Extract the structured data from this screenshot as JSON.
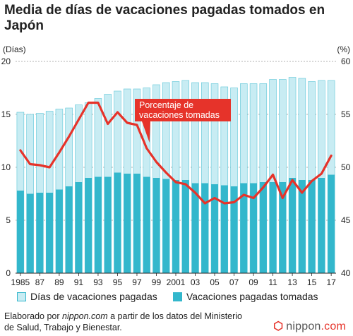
{
  "chart_data": {
    "type": "bar+line",
    "title": "Media de días de vacaciones pagadas tomados en Japón",
    "left_axis": {
      "unit_label": "(Días)",
      "ylim": [
        0,
        20
      ],
      "ticks": [
        "0",
        "5",
        "10",
        "15",
        "20"
      ]
    },
    "right_axis": {
      "unit_label": "(%)",
      "ylim": [
        40,
        60
      ],
      "ticks": [
        "40",
        "45",
        "50",
        "55",
        "60"
      ]
    },
    "x": [
      1985,
      1986,
      1987,
      1988,
      1989,
      1990,
      1991,
      1992,
      1993,
      1994,
      1995,
      1996,
      1997,
      1998,
      1999,
      2000,
      2001,
      2002,
      2003,
      2004,
      2005,
      2006,
      2007,
      2008,
      2009,
      2010,
      2011,
      2012,
      2013,
      2014,
      2015,
      2016,
      2017
    ],
    "x_tick_labels": [
      "1985",
      "87",
      "89",
      "91",
      "93",
      "95",
      "97",
      "99",
      "2001",
      "03",
      "05",
      "07",
      "09",
      "11",
      "13",
      "15",
      "17"
    ],
    "series": [
      {
        "name": "Días de vacaciones pagadas",
        "kind": "bar",
        "color": "#c8ecf3",
        "values": [
          15.2,
          15.0,
          15.1,
          15.3,
          15.5,
          15.6,
          15.9,
          16.1,
          16.5,
          16.9,
          17.2,
          17.4,
          17.4,
          17.5,
          17.8,
          18.0,
          18.1,
          18.2,
          18.0,
          18.0,
          17.9,
          17.6,
          17.5,
          17.9,
          17.9,
          17.9,
          18.3,
          18.3,
          18.5,
          18.4,
          18.1,
          18.2,
          18.2
        ]
      },
      {
        "name": "Vacaciones pagadas tomadas",
        "kind": "bar",
        "color": "#33b7cc",
        "values": [
          7.8,
          7.5,
          7.6,
          7.6,
          7.9,
          8.2,
          8.6,
          9.0,
          9.1,
          9.1,
          9.5,
          9.4,
          9.4,
          9.1,
          9.0,
          8.9,
          8.8,
          8.8,
          8.5,
          8.5,
          8.4,
          8.3,
          8.2,
          8.5,
          8.5,
          8.6,
          8.6,
          8.6,
          9.0,
          8.8,
          8.8,
          9.0,
          9.3
        ]
      },
      {
        "name": "Porcentaje de vacaciones tomadas",
        "kind": "line",
        "axis": "right",
        "color": "#e6332a",
        "values": [
          51.6,
          50.3,
          50.2,
          50.0,
          51.4,
          52.9,
          54.5,
          56.1,
          56.1,
          54.1,
          55.2,
          54.2,
          54.0,
          51.8,
          50.5,
          49.5,
          48.6,
          48.4,
          47.6,
          46.6,
          47.1,
          46.6,
          46.7,
          47.4,
          47.1,
          48.1,
          49.3,
          47.1,
          48.8,
          47.6,
          48.7,
          49.4,
          51.1
        ]
      }
    ],
    "annotation": "Porcentaje de vacaciones tomadas",
    "grid": true
  },
  "legend": {
    "total_label": "Días de vacaciones pagadas",
    "taken_label": "Vacaciones pagadas tomadas"
  },
  "source": {
    "prefix": "Elaborado por ",
    "site": "nippon.com",
    "line1_rest": " a partir de los datos del Ministerio",
    "line2": "de Salud, Trabajo y Bienestar."
  },
  "logo": {
    "name": "nippon",
    "domain": ".com"
  }
}
